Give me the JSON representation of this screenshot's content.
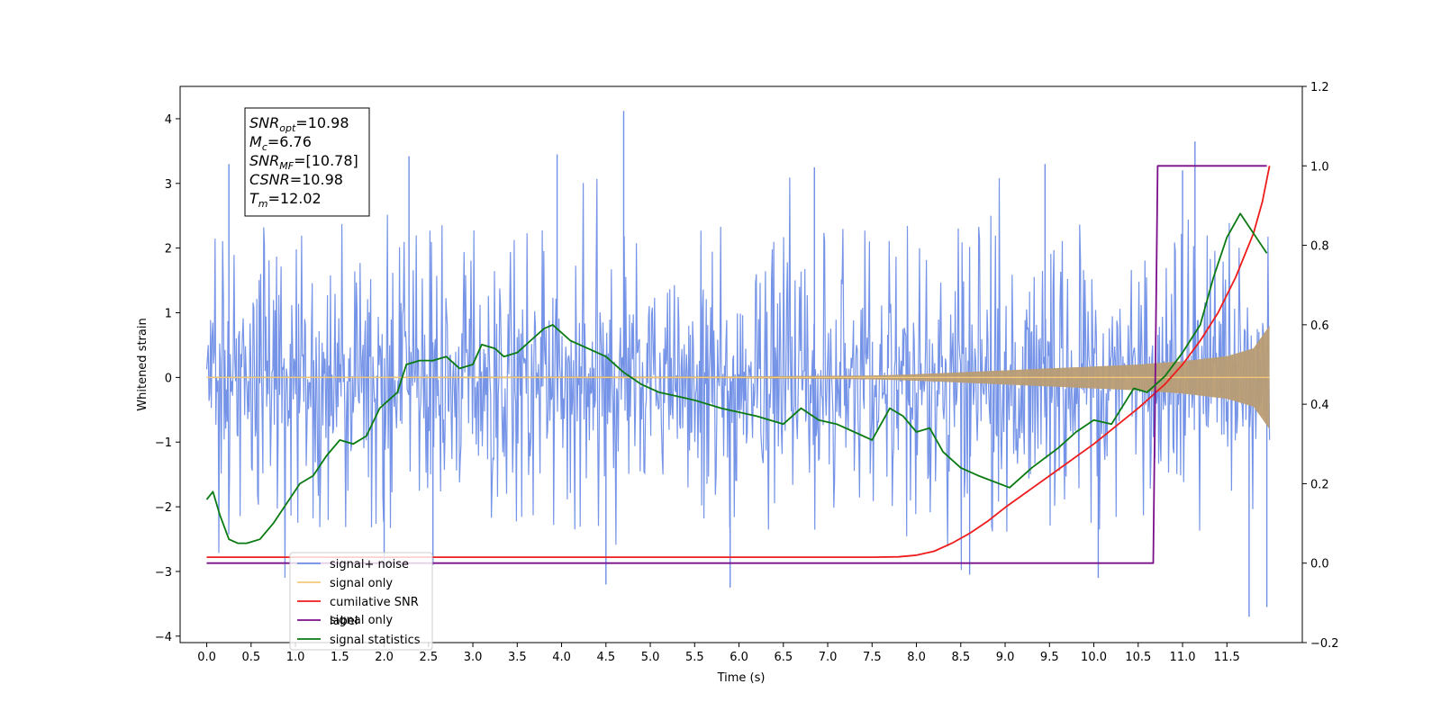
{
  "chart_data": {
    "type": "line",
    "xlabel": "Time (s)",
    "ylabel": "Whitened strain",
    "xlim": [
      -0.3,
      12.35
    ],
    "ylim": [
      -4.1,
      4.5
    ],
    "y2lim": [
      -0.2,
      1.2
    ],
    "x_ticks": [
      0.0,
      0.5,
      1.0,
      1.5,
      2.0,
      2.5,
      3.0,
      3.5,
      4.0,
      4.5,
      5.0,
      5.5,
      6.0,
      6.5,
      7.0,
      7.5,
      8.0,
      8.5,
      9.0,
      9.5,
      10.0,
      10.5,
      11.0,
      11.5
    ],
    "x_tick_labels": [
      "0.0",
      "0.5",
      "1.0",
      "1.5",
      "2.0",
      "2.5",
      "3.0",
      "3.5",
      "4.0",
      "4.5",
      "5.0",
      "5.5",
      "6.0",
      "6.5",
      "7.0",
      "7.5",
      "8.0",
      "8.5",
      "9.0",
      "9.5",
      "10.0",
      "10.5",
      "11.0",
      "11.5"
    ],
    "y_ticks": [
      -4,
      -3,
      -2,
      -1,
      0,
      1,
      2,
      3,
      4
    ],
    "y_tick_labels": [
      "−4",
      "−3",
      "−2",
      "−1",
      "0",
      "1",
      "2",
      "3",
      "4"
    ],
    "y2_ticks": [
      -0.2,
      0.0,
      0.2,
      0.4,
      0.6,
      0.8,
      1.0,
      1.2
    ],
    "y2_tick_labels": [
      "−0.2",
      "0.0",
      "0.2",
      "0.4",
      "0.6",
      "0.8",
      "1.0",
      "1.2"
    ],
    "grid": false,
    "legend_position": "bottom-left",
    "info_box": {
      "lines": [
        {
          "main": "SNR",
          "sub": "opt",
          "value": "=10.98"
        },
        {
          "main": "M",
          "sub": "c",
          "value": "=6.76"
        },
        {
          "main": "SNR",
          "sub": "MF",
          "value": "=[10.78]"
        },
        {
          "main": "CSNR",
          "sub": "",
          "value": "=10.98"
        },
        {
          "main": "T",
          "sub": "m",
          "value": "=12.02"
        }
      ]
    },
    "series": [
      {
        "name": "signal+ noise",
        "axis": "left",
        "color": "#6f8ee6",
        "kind": "noise_band",
        "mean": 0.0,
        "typical_range": [
          -1.7,
          1.9
        ],
        "x_range": [
          0.0,
          11.98
        ],
        "spikes": [
          {
            "x": 4.7,
            "y": 4.12
          },
          {
            "x": 11.14,
            "y": 3.65
          },
          {
            "x": 2.28,
            "y": 3.42
          },
          {
            "x": 3.95,
            "y": 3.45
          },
          {
            "x": 0.25,
            "y": 3.3
          },
          {
            "x": 11.75,
            "y": -3.7
          },
          {
            "x": 5.9,
            "y": -3.25
          },
          {
            "x": 4.5,
            "y": -3.2
          },
          {
            "x": 11.95,
            "y": -3.55
          },
          {
            "x": 10.05,
            "y": -3.1
          },
          {
            "x": 8.6,
            "y": -3.05
          },
          {
            "x": 2.0,
            "y": -2.95
          },
          {
            "x": 2.55,
            "y": -2.9
          },
          {
            "x": 11.0,
            "y": 3.2
          },
          {
            "x": 9.45,
            "y": 3.3
          },
          {
            "x": 6.85,
            "y": 3.25
          }
        ]
      },
      {
        "name": "signal only",
        "axis": "left",
        "color": "#f5c97a",
        "fill_color": "#b89c74",
        "kind": "envelope",
        "x": [
          0.0,
          6.0,
          7.5,
          8.0,
          8.5,
          9.0,
          9.5,
          10.0,
          10.5,
          11.0,
          11.5,
          11.8,
          11.98
        ],
        "amplitude": [
          0.01,
          0.015,
          0.03,
          0.05,
          0.08,
          0.11,
          0.14,
          0.17,
          0.2,
          0.25,
          0.33,
          0.45,
          0.8
        ]
      },
      {
        "name": "cumilative SNR",
        "axis": "right",
        "color": "#ee1c1c",
        "x": [
          0.0,
          7.5,
          7.8,
          8.0,
          8.2,
          8.4,
          8.6,
          8.8,
          9.0,
          9.5,
          10.0,
          10.5,
          10.8,
          11.0,
          11.2,
          11.4,
          11.6,
          11.8,
          11.9,
          11.98
        ],
        "values": [
          0.015,
          0.015,
          0.016,
          0.02,
          0.03,
          0.05,
          0.075,
          0.105,
          0.14,
          0.22,
          0.3,
          0.39,
          0.45,
          0.5,
          0.56,
          0.63,
          0.72,
          0.83,
          0.91,
          1.0
        ]
      },
      {
        "name": "label",
        "axis": "right",
        "color": "#7b0f8a",
        "x": [
          0.0,
          10.67,
          10.72,
          11.95
        ],
        "values": [
          0.0,
          0.0,
          1.0,
          1.0
        ]
      },
      {
        "name": "signal statistics",
        "axis": "right",
        "color": "#0a7a12",
        "x": [
          0.0,
          0.07,
          0.15,
          0.25,
          0.35,
          0.45,
          0.6,
          0.75,
          0.9,
          1.05,
          1.2,
          1.35,
          1.5,
          1.65,
          1.8,
          1.95,
          2.05,
          2.15,
          2.25,
          2.4,
          2.55,
          2.7,
          2.85,
          3.0,
          3.1,
          3.25,
          3.35,
          3.5,
          3.65,
          3.8,
          3.9,
          4.0,
          4.1,
          4.3,
          4.5,
          4.7,
          4.9,
          5.1,
          5.3,
          5.5,
          5.8,
          6.0,
          6.2,
          6.5,
          6.7,
          6.9,
          7.1,
          7.3,
          7.5,
          7.7,
          7.85,
          8.0,
          8.15,
          8.3,
          8.5,
          8.7,
          9.05,
          9.3,
          9.6,
          9.8,
          10.0,
          10.2,
          10.45,
          10.6,
          10.8,
          11.0,
          11.2,
          11.35,
          11.5,
          11.65,
          11.8,
          11.95
        ],
        "values": [
          0.16,
          0.18,
          0.12,
          0.06,
          0.05,
          0.05,
          0.06,
          0.1,
          0.15,
          0.2,
          0.22,
          0.27,
          0.31,
          0.3,
          0.32,
          0.39,
          0.41,
          0.43,
          0.5,
          0.51,
          0.51,
          0.52,
          0.49,
          0.5,
          0.55,
          0.54,
          0.52,
          0.53,
          0.56,
          0.59,
          0.6,
          0.58,
          0.56,
          0.54,
          0.52,
          0.48,
          0.45,
          0.43,
          0.42,
          0.41,
          0.39,
          0.38,
          0.37,
          0.35,
          0.39,
          0.36,
          0.35,
          0.33,
          0.31,
          0.39,
          0.37,
          0.33,
          0.34,
          0.28,
          0.24,
          0.22,
          0.19,
          0.24,
          0.29,
          0.33,
          0.36,
          0.35,
          0.44,
          0.43,
          0.47,
          0.53,
          0.6,
          0.72,
          0.82,
          0.88,
          0.83,
          0.78
        ]
      }
    ],
    "legend": [
      {
        "label": "signal+ noise",
        "color": "#6f8ee6"
      },
      {
        "label": "signal only",
        "color": "#f5c97a"
      },
      {
        "label": "cumilative SNR",
        "color": "#ee1c1c"
      },
      {
        "label": "label",
        "color": "#7b0f8a"
      },
      {
        "label": "signal statistics",
        "color": "#0a7a12"
      }
    ],
    "hidden_text": "signal only"
  }
}
